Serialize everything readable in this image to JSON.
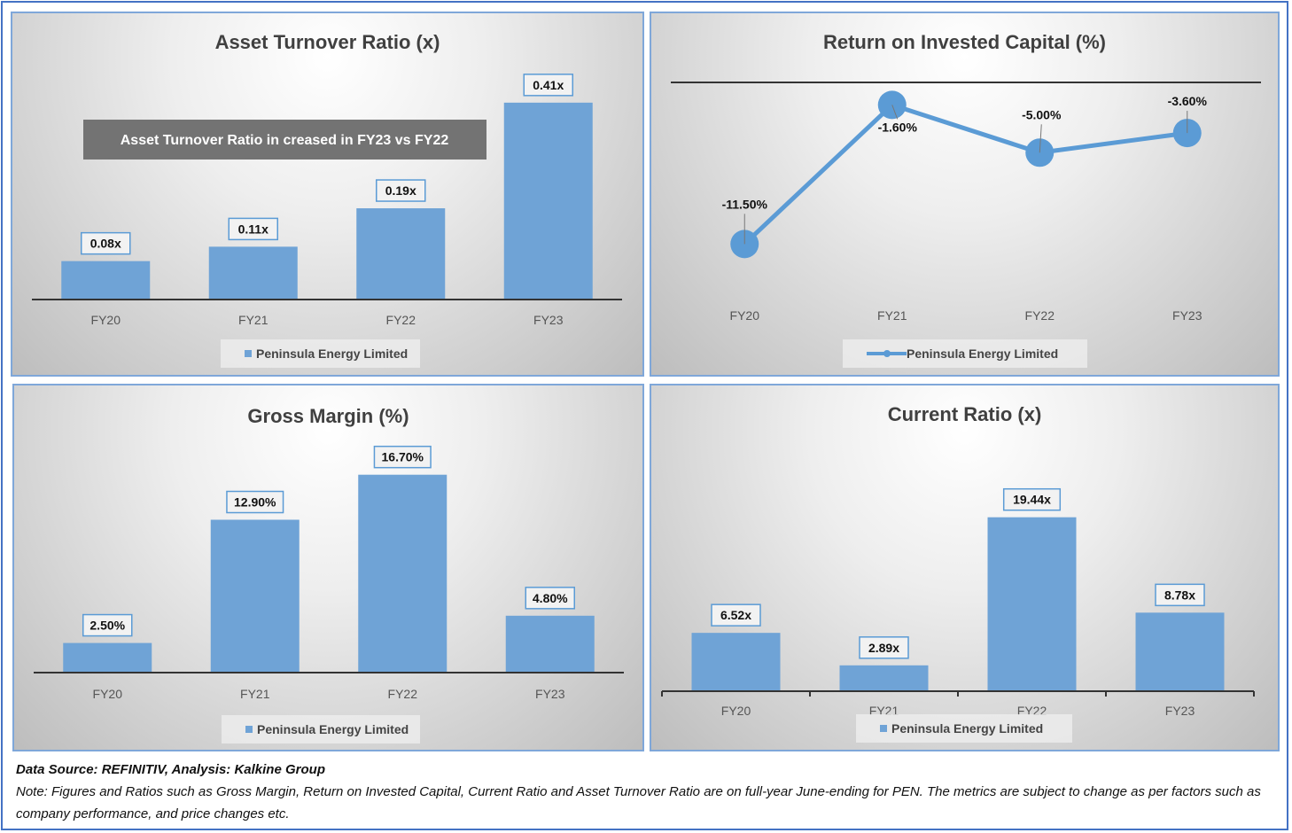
{
  "charts": [
    {
      "id": "asset-turnover",
      "type": "bar",
      "title": "Asset Turnover Ratio (x)",
      "categories": [
        "FY20",
        "FY21",
        "FY22",
        "FY23"
      ],
      "values": [
        0.08,
        0.11,
        0.19,
        0.41
      ],
      "labels": [
        "0.08x",
        "0.11x",
        "0.19x",
        "0.41x"
      ],
      "legend": "Peninsula Energy Limited",
      "annotation": "Asset Turnover Ratio in creased in FY23 vs FY22",
      "ylim": [
        0,
        0.43
      ]
    },
    {
      "id": "roic",
      "type": "line",
      "title": "Return on Invested Capital (%)",
      "categories": [
        "FY20",
        "FY21",
        "FY22",
        "FY23"
      ],
      "values": [
        -11.5,
        -1.6,
        -5.0,
        -3.6
      ],
      "labels": [
        "-11.50%",
        "-1.60%",
        "-5.00%",
        "-3.60%"
      ],
      "legend": "Peninsula Energy Limited",
      "ylim": [
        -14,
        0
      ]
    },
    {
      "id": "gross-margin",
      "type": "bar",
      "title": "Gross Margin (%)",
      "categories": [
        "FY20",
        "FY21",
        "FY22",
        "FY23"
      ],
      "values": [
        2.5,
        12.9,
        16.7,
        4.8
      ],
      "labels": [
        "2.50%",
        "12.90%",
        "16.70%",
        "4.80%"
      ],
      "legend": "Peninsula Energy Limited",
      "ylim": [
        0,
        17.5
      ]
    },
    {
      "id": "current-ratio",
      "type": "bar",
      "title": "Current Ratio (x)",
      "categories": [
        "FY20",
        "FY21",
        "FY22",
        "FY23"
      ],
      "values": [
        6.52,
        2.89,
        19.44,
        8.78
      ],
      "labels": [
        "6.52x",
        "2.89x",
        "19.44x",
        "8.78x"
      ],
      "legend": "Peninsula Energy Limited",
      "ylim": [
        0,
        20.5
      ]
    }
  ],
  "chart_data": [
    {
      "type": "bar",
      "title": "Asset Turnover Ratio (x)",
      "categories": [
        "FY20",
        "FY21",
        "FY22",
        "FY23"
      ],
      "series": [
        {
          "name": "Peninsula Energy Limited",
          "values": [
            0.08,
            0.11,
            0.19,
            0.41
          ]
        }
      ],
      "annotations": [
        "Asset Turnover Ratio in creased in FY23 vs FY22"
      ],
      "legend": "bottom",
      "grid": false
    },
    {
      "type": "line",
      "title": "Return on Invested Capital (%)",
      "categories": [
        "FY20",
        "FY21",
        "FY22",
        "FY23"
      ],
      "series": [
        {
          "name": "Peninsula Energy Limited",
          "values": [
            -11.5,
            -1.6,
            -5.0,
            -3.6
          ]
        }
      ],
      "legend": "bottom",
      "grid": false
    },
    {
      "type": "bar",
      "title": "Gross Margin (%)",
      "categories": [
        "FY20",
        "FY21",
        "FY22",
        "FY23"
      ],
      "series": [
        {
          "name": "Peninsula Energy Limited",
          "values": [
            2.5,
            12.9,
            16.7,
            4.8
          ]
        }
      ],
      "legend": "bottom",
      "grid": false
    },
    {
      "type": "bar",
      "title": "Current Ratio (x)",
      "categories": [
        "FY20",
        "FY21",
        "FY22",
        "FY23"
      ],
      "series": [
        {
          "name": "Peninsula Energy Limited",
          "values": [
            6.52,
            2.89,
            19.44,
            8.78
          ]
        }
      ],
      "legend": "bottom",
      "grid": false
    }
  ],
  "footer": {
    "source": "Data Source: REFINITIV, Analysis: Kalkine Group",
    "note": "Note: Figures and Ratios such as Gross Margin, Return on Invested Capital, Current Ratio and Asset Turnover Ratio are on full-year June-ending for PEN. The metrics are subject to change as per factors such as company performance, and price changes etc."
  },
  "colors": {
    "bar": "#6fa3d6",
    "line": "#5b9bd5",
    "frame": "#4472c4",
    "panel_border": "#7fa7d9"
  }
}
